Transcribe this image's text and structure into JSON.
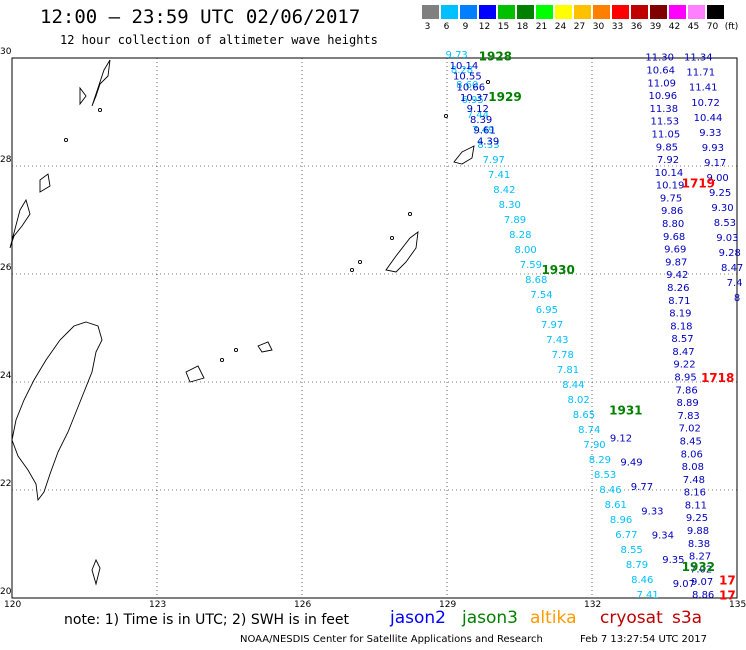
{
  "header": {
    "title": "12:00 – 23:59 UTC 02/06/2017",
    "subtitle": "12 hour collection of altimeter wave heights"
  },
  "colorbar": {
    "ticks": [
      "3",
      "6",
      "9",
      "12",
      "15",
      "18",
      "21",
      "24",
      "27",
      "30",
      "33",
      "36",
      "39",
      "42",
      "45",
      "70",
      "(ft)"
    ],
    "colors": [
      "#808080",
      "#00c0ff",
      "#0080ff",
      "#0000ff",
      "#00c000",
      "#008000",
      "#00ff00",
      "#ffff00",
      "#ffc000",
      "#ff8000",
      "#ff0000",
      "#c00000",
      "#800000",
      "#ff00ff",
      "#ff80ff",
      "#000000"
    ]
  },
  "axes": {
    "lon_labels": [
      "120",
      "123",
      "126",
      "129",
      "132",
      "135"
    ],
    "lat_labels": [
      "30",
      "28",
      "26",
      "24",
      "22",
      "20"
    ]
  },
  "track_labels": [
    {
      "text": "1928",
      "lon": 130.0,
      "lat": 29.95,
      "color": "#008000"
    },
    {
      "text": "1929",
      "lon": 130.2,
      "lat": 29.2,
      "color": "#008000"
    },
    {
      "text": "1930",
      "lon": 131.3,
      "lat": 26.0,
      "color": "#008000"
    },
    {
      "text": "1931",
      "lon": 132.7,
      "lat": 23.4,
      "color": "#008000"
    },
    {
      "text": "1932",
      "lon": 134.2,
      "lat": 20.5,
      "color": "#008000"
    },
    {
      "text": "1719",
      "lon": 134.2,
      "lat": 27.6,
      "color": "#ff0000"
    },
    {
      "text": "1718",
      "lon": 134.6,
      "lat": 24.0,
      "color": "#ff0000"
    },
    {
      "text": "17",
      "lon": 134.8,
      "lat": 20.25,
      "color": "#ff0000"
    },
    {
      "text": "17",
      "lon": 134.8,
      "lat": 19.97,
      "color": "#ff0000"
    }
  ],
  "tracks": [
    {
      "color": "#00c0ff",
      "values": [
        "9.73",
        "8.28",
        "8.60",
        "6.95",
        "7.44",
        "7.49",
        "8.33",
        "7.97",
        "7.41",
        "8.42",
        "8.30",
        "7.89",
        "8.28",
        "8.00",
        "7.59",
        "8.68",
        "7.54",
        "6.95",
        "7.97",
        "7.43",
        "7.78",
        "7.81",
        "8.44",
        "8.02",
        "8.65",
        "8.74",
        "7.90",
        "8.29",
        "8.53",
        "8.46",
        "8.61",
        "8.96",
        "6.77",
        "8.55",
        "8.79",
        "8.46",
        "7.41"
      ],
      "lon0": 129.2,
      "lat0": 30.0,
      "lon1": 133.15,
      "lat1": 20.0
    },
    {
      "color": "#0000c0",
      "values": [
        "10.14",
        "10.55",
        "10.66",
        "10.37",
        "9.12",
        "8.39",
        "9.61",
        "4.39"
      ],
      "lon0": 129.35,
      "lat0": 29.8,
      "lon1": 129.85,
      "lat1": 28.4
    },
    {
      "color": "#0000c0",
      "values": [
        "9.12",
        "9.49",
        "9.77",
        "9.33",
        "9.34",
        "9.35",
        "9.07"
      ],
      "lon0": 132.6,
      "lat0": 22.9,
      "lon1": 133.9,
      "lat1": 20.2
    },
    {
      "color": "#0000c0",
      "values": [
        "11.30",
        "10.64",
        "11.09",
        "10.96",
        "11.38",
        "11.53",
        "11.05",
        "9.85",
        "7.92",
        "10.14",
        "10.19",
        "9.75",
        "9.86",
        "8.80",
        "9.68",
        "9.69",
        "9.87",
        "9.42",
        "8.26",
        "8.71",
        "8.19",
        "8.18",
        "8.57",
        "8.47",
        "9.22",
        "8.95",
        "7.86",
        "8.89",
        "7.83",
        "7.02",
        "8.45",
        "8.06",
        "8.08",
        "7.48",
        "8.16",
        "8.11",
        "9.25",
        "9.88",
        "8.38",
        "8.27",
        "7.02",
        "9.07",
        "8.86"
      ],
      "lon0": 133.4,
      "lat0": 29.95,
      "lon1": 134.3,
      "lat1": 20.0
    },
    {
      "color": "#0000c0",
      "values": [
        "11.34",
        "11.71",
        "11.41",
        "10.72",
        "10.44",
        "9.33",
        "9.93",
        "9.17",
        "9.00",
        "9.25",
        "9.30",
        "8.53",
        "9.03",
        "9.28",
        "8.47",
        "7.4",
        "8"
      ],
      "lon0": 134.2,
      "lat0": 29.95,
      "lon1": 135.0,
      "lat1": 25.5
    }
  ],
  "footer": {
    "note": "note: 1) Time is in UTC; 2) SWH is in feet",
    "legend": [
      {
        "label": "jason2",
        "color": "#0000ff"
      },
      {
        "label": "jason3",
        "color": "#008000"
      },
      {
        "label": "altika",
        "color": "#ff9900"
      },
      {
        "label": "cryosat",
        "color": "#c00000"
      },
      {
        "label": "s3a",
        "color": "#c00000"
      }
    ],
    "credit": "NOAA/NESDIS Center for Satellite Applications and Research",
    "stamp": "Feb 7 13:27:54 UTC 2017"
  }
}
